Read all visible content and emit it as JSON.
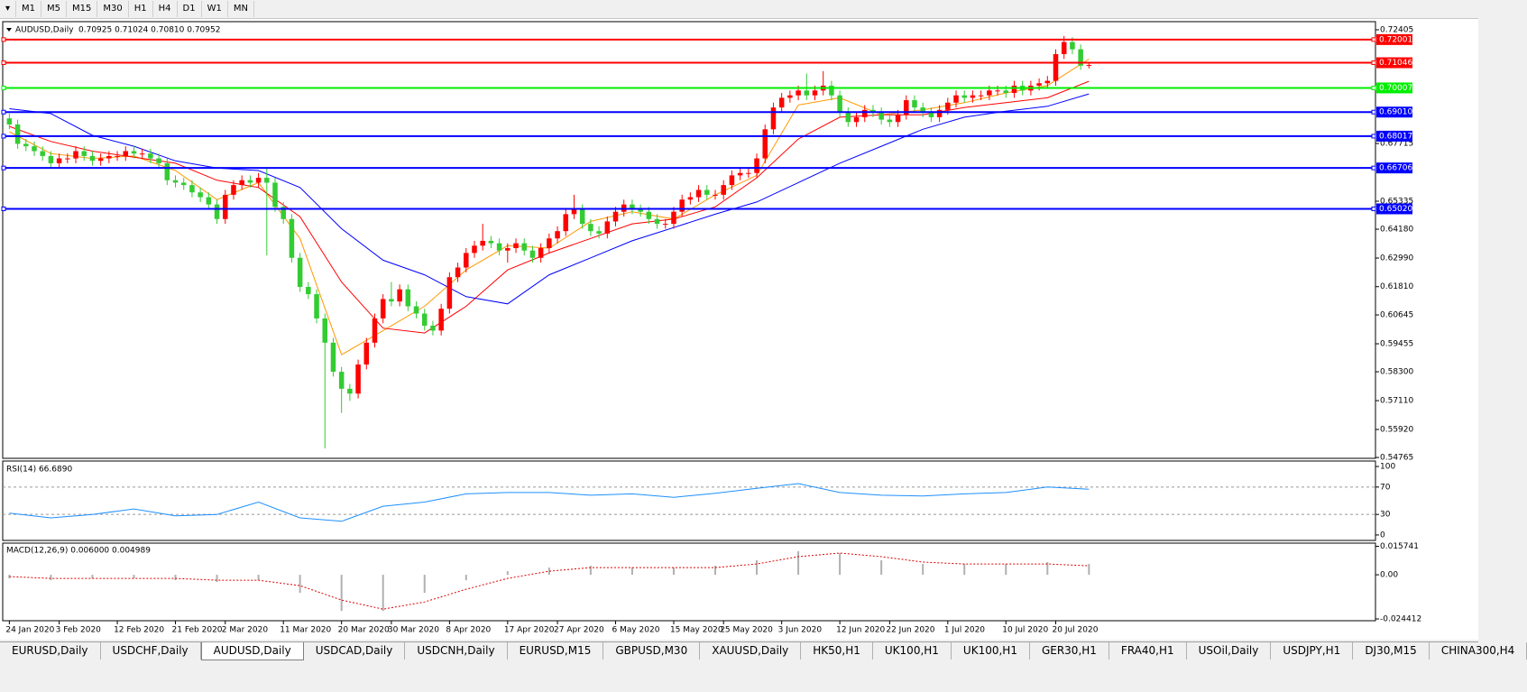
{
  "toolbar": {
    "timeframes": [
      "M1",
      "M5",
      "M15",
      "M30",
      "H1",
      "H4",
      "D1",
      "W1",
      "MN"
    ]
  },
  "chart_data": [
    {
      "type": "candlestick",
      "title": "AUDUSD,Daily",
      "subtitle": "0.70925 0.71024 0.70810 0.70952",
      "up_color": "#ff0000",
      "down_color": "#33cc33",
      "ylim": [
        0.5473,
        0.7274
      ],
      "yticks": [
        0.72405,
        0.67715,
        0.65335,
        {
          "value": 0.6418,
          "label": "0.64180"
        },
        {
          "value": 0.6299,
          "label": "0.62990"
        },
        {
          "value": 0.6181,
          "label": "0.61810"
        },
        0.60645,
        0.59455,
        {
          "value": 0.583,
          "label": "0.58300"
        },
        {
          "value": 0.5711,
          "label": "0.57110"
        },
        {
          "value": 0.5592,
          "label": "0.55920"
        },
        0.54765
      ],
      "xlim": [
        -0.8,
        164.5
      ],
      "xticks": [
        {
          "value": 0,
          "label": "24 Jan 2020"
        },
        {
          "value": 6,
          "label": "3 Feb 2020"
        },
        {
          "value": 13,
          "label": "12 Feb 2020"
        },
        {
          "value": 20,
          "label": "21 Feb 2020"
        },
        {
          "value": 26,
          "label": "2 Mar 2020"
        },
        {
          "value": 33,
          "label": "11 Mar 2020"
        },
        {
          "value": 40,
          "label": "20 Mar 2020"
        },
        {
          "value": 46,
          "label": "30 Mar 2020"
        },
        {
          "value": 53,
          "label": "8 Apr 2020"
        },
        {
          "value": 60,
          "label": "17 Apr 2020"
        },
        {
          "value": 66,
          "label": "27 Apr 2020"
        },
        {
          "value": 73,
          "label": "6 May 2020"
        },
        {
          "value": 80,
          "label": "15 May 2020"
        },
        {
          "value": 86,
          "label": "25 May 2020"
        },
        {
          "value": 93,
          "label": "3 Jun 2020"
        },
        {
          "value": 100,
          "label": "12 Jun 2020"
        },
        {
          "value": 106,
          "label": "22 Jun 2020"
        },
        {
          "value": 113,
          "label": "1 Jul 2020"
        },
        {
          "value": 120,
          "label": "10 Jul 2020"
        },
        {
          "value": 126,
          "label": "20 Jul 2020"
        }
      ],
      "open": [
        0.6875,
        0.685,
        0.677,
        0.676,
        0.674,
        0.672,
        0.669,
        0.671,
        0.671,
        0.674,
        0.672,
        0.67,
        0.671,
        0.672,
        0.672,
        0.674,
        0.673,
        0.673,
        0.671,
        0.669,
        0.662,
        0.661,
        0.66,
        0.657,
        0.655,
        0.652,
        0.646,
        0.656,
        0.66,
        0.662,
        0.661,
        0.663,
        0.661,
        0.651,
        0.646,
        0.63,
        0.618,
        0.615,
        0.605,
        0.595,
        0.583,
        0.576,
        0.574,
        0.586,
        0.595,
        0.605,
        0.613,
        0.612,
        0.617,
        0.61,
        0.607,
        0.602,
        0.6,
        0.609,
        0.622,
        0.626,
        0.632,
        0.635,
        0.637,
        0.636,
        0.633,
        0.634,
        0.636,
        0.633,
        0.63,
        0.634,
        0.638,
        0.641,
        0.648,
        0.65,
        0.644,
        0.641,
        0.64,
        0.645,
        0.649,
        0.652,
        0.65,
        0.649,
        0.646,
        0.644,
        0.644,
        0.649,
        0.654,
        0.655,
        0.658,
        0.656,
        0.656,
        0.66,
        0.664,
        0.665,
        0.665,
        0.671,
        0.683,
        0.692,
        0.696,
        0.697,
        0.699,
        0.697,
        0.699,
        0.701,
        0.697,
        0.69,
        0.686,
        0.688,
        0.691,
        0.69,
        0.687,
        0.686,
        0.689,
        0.695,
        0.692,
        0.69,
        0.688,
        0.691,
        0.694,
        0.697,
        0.696,
        0.697,
        0.697,
        0.699,
        0.699,
        0.698,
        0.701,
        0.699,
        0.701,
        0.702,
        0.703,
        0.714,
        0.719,
        0.716,
        0.70925
      ],
      "high": [
        0.6895,
        0.687,
        0.679,
        0.678,
        0.676,
        0.674,
        0.673,
        0.673,
        0.676,
        0.676,
        0.674,
        0.673,
        0.674,
        0.674,
        0.676,
        0.676,
        0.675,
        0.675,
        0.673,
        0.671,
        0.664,
        0.663,
        0.662,
        0.659,
        0.657,
        0.654,
        0.658,
        0.662,
        0.664,
        0.664,
        0.665,
        0.667,
        0.663,
        0.653,
        0.648,
        0.632,
        0.62,
        0.617,
        0.607,
        0.597,
        0.585,
        0.578,
        0.588,
        0.597,
        0.607,
        0.615,
        0.62,
        0.619,
        0.619,
        0.612,
        0.609,
        0.604,
        0.611,
        0.624,
        0.628,
        0.634,
        0.637,
        0.644,
        0.639,
        0.638,
        0.636,
        0.638,
        0.638,
        0.635,
        0.636,
        0.64,
        0.643,
        0.65,
        0.656,
        0.652,
        0.646,
        0.643,
        0.647,
        0.651,
        0.654,
        0.654,
        0.652,
        0.651,
        0.648,
        0.646,
        0.651,
        0.656,
        0.657,
        0.66,
        0.66,
        0.658,
        0.662,
        0.666,
        0.667,
        0.667,
        0.673,
        0.685,
        0.694,
        0.698,
        0.699,
        0.701,
        0.706,
        0.701,
        0.707,
        0.703,
        0.699,
        0.692,
        0.69,
        0.693,
        0.693,
        0.692,
        0.689,
        0.691,
        0.697,
        0.697,
        0.694,
        0.692,
        0.693,
        0.696,
        0.699,
        0.699,
        0.699,
        0.699,
        0.701,
        0.701,
        0.701,
        0.703,
        0.703,
        0.703,
        0.704,
        0.705,
        0.716,
        0.7215,
        0.721,
        0.718,
        0.71024
      ],
      "low": [
        0.683,
        0.675,
        0.674,
        0.672,
        0.67,
        0.667,
        0.667,
        0.669,
        0.669,
        0.67,
        0.668,
        0.668,
        0.669,
        0.67,
        0.67,
        0.671,
        0.671,
        0.669,
        0.667,
        0.66,
        0.659,
        0.658,
        0.655,
        0.653,
        0.65,
        0.644,
        0.644,
        0.654,
        0.658,
        0.659,
        0.659,
        0.631,
        0.649,
        0.644,
        0.628,
        0.616,
        0.613,
        0.603,
        0.5514,
        0.581,
        0.566,
        0.571,
        0.572,
        0.584,
        0.593,
        0.603,
        0.61,
        0.61,
        0.608,
        0.605,
        0.6,
        0.598,
        0.598,
        0.607,
        0.62,
        0.624,
        0.63,
        0.633,
        0.634,
        0.631,
        0.628,
        0.632,
        0.631,
        0.628,
        0.628,
        0.632,
        0.636,
        0.639,
        0.646,
        0.642,
        0.639,
        0.638,
        0.638,
        0.643,
        0.647,
        0.648,
        0.647,
        0.644,
        0.642,
        0.642,
        0.642,
        0.647,
        0.652,
        0.653,
        0.654,
        0.654,
        0.654,
        0.658,
        0.662,
        0.663,
        0.663,
        0.669,
        0.681,
        0.69,
        0.694,
        0.695,
        0.695,
        0.695,
        0.697,
        0.695,
        0.688,
        0.684,
        0.684,
        0.686,
        0.688,
        0.685,
        0.684,
        0.684,
        0.687,
        0.69,
        0.688,
        0.686,
        0.686,
        0.689,
        0.692,
        0.694,
        0.694,
        0.695,
        0.695,
        0.697,
        0.696,
        0.696,
        0.697,
        0.697,
        0.699,
        0.7,
        0.701,
        0.712,
        0.714,
        0.7075,
        0.7081
      ],
      "close": [
        0.685,
        0.677,
        0.676,
        0.674,
        0.672,
        0.669,
        0.671,
        0.671,
        0.674,
        0.672,
        0.67,
        0.671,
        0.672,
        0.672,
        0.674,
        0.673,
        0.673,
        0.671,
        0.669,
        0.662,
        0.661,
        0.66,
        0.657,
        0.655,
        0.652,
        0.646,
        0.656,
        0.66,
        0.662,
        0.661,
        0.663,
        0.661,
        0.651,
        0.646,
        0.63,
        0.618,
        0.615,
        0.605,
        0.595,
        0.583,
        0.576,
        0.574,
        0.586,
        0.595,
        0.605,
        0.613,
        0.612,
        0.617,
        0.61,
        0.607,
        0.602,
        0.6,
        0.609,
        0.622,
        0.626,
        0.632,
        0.635,
        0.637,
        0.636,
        0.633,
        0.634,
        0.636,
        0.633,
        0.63,
        0.634,
        0.638,
        0.641,
        0.648,
        0.65,
        0.644,
        0.641,
        0.64,
        0.645,
        0.649,
        0.652,
        0.65,
        0.649,
        0.646,
        0.644,
        0.644,
        0.649,
        0.654,
        0.655,
        0.658,
        0.656,
        0.656,
        0.66,
        0.664,
        0.665,
        0.665,
        0.671,
        0.683,
        0.692,
        0.696,
        0.697,
        0.699,
        0.697,
        0.699,
        0.701,
        0.697,
        0.69,
        0.686,
        0.688,
        0.691,
        0.69,
        0.687,
        0.686,
        0.689,
        0.695,
        0.692,
        0.69,
        0.688,
        0.691,
        0.694,
        0.697,
        0.696,
        0.697,
        0.697,
        0.699,
        0.699,
        0.698,
        0.701,
        0.699,
        0.701,
        0.702,
        0.703,
        0.714,
        0.719,
        0.716,
        0.70925,
        0.70952
      ],
      "series": [
        {
          "color": "#ff9900",
          "x": [
            0,
            5,
            10,
            15,
            20,
            25,
            30,
            35,
            40,
            45,
            50,
            55,
            60,
            65,
            70,
            75,
            80,
            85,
            90,
            95,
            100,
            105,
            110,
            115,
            120,
            125,
            130
          ],
          "values": [
            0.682,
            0.673,
            0.671,
            0.672,
            0.666,
            0.654,
            0.661,
            0.638,
            0.59,
            0.6,
            0.61,
            0.625,
            0.635,
            0.634,
            0.645,
            0.649,
            0.646,
            0.656,
            0.664,
            0.693,
            0.696,
            0.689,
            0.691,
            0.694,
            0.698,
            0.701,
            0.712
          ]
        },
        {
          "color": "#ff0000",
          "x": [
            0,
            5,
            10,
            15,
            20,
            25,
            30,
            35,
            40,
            45,
            50,
            55,
            60,
            65,
            70,
            75,
            80,
            85,
            90,
            95,
            100,
            105,
            110,
            115,
            120,
            125,
            130
          ],
          "values": [
            0.6842,
            0.678,
            0.674,
            0.6715,
            0.669,
            0.662,
            0.659,
            0.647,
            0.62,
            0.601,
            0.599,
            0.61,
            0.625,
            0.632,
            0.638,
            0.644,
            0.646,
            0.651,
            0.663,
            0.679,
            0.688,
            0.689,
            0.689,
            0.692,
            0.694,
            0.696,
            0.7028
          ]
        },
        {
          "color": "#0000ff",
          "x": [
            0,
            5,
            10,
            15,
            20,
            25,
            30,
            35,
            40,
            45,
            50,
            55,
            60,
            65,
            70,
            75,
            80,
            85,
            90,
            95,
            100,
            105,
            110,
            115,
            120,
            125,
            130
          ],
          "values": [
            0.6915,
            0.6895,
            0.6805,
            0.676,
            0.67,
            0.667,
            0.666,
            0.659,
            0.642,
            0.629,
            0.623,
            0.614,
            0.611,
            0.623,
            0.63,
            0.637,
            0.6425,
            0.648,
            0.653,
            0.661,
            0.669,
            0.676,
            0.683,
            0.688,
            0.6905,
            0.6925,
            0.6976
          ]
        }
      ],
      "levels": [
        {
          "value": 0.72001,
          "color": "#ff0000"
        },
        {
          "value": 0.71046,
          "color": "#ff0000"
        },
        {
          "value": 0.70007,
          "color": "#00ee00"
        },
        {
          "value": 0.6901,
          "label": "0.69010",
          "color": "#0000ff"
        },
        {
          "value": 0.68017,
          "color": "#0000ff"
        },
        {
          "value": 0.66706,
          "color": "#0000ff"
        },
        {
          "value": 0.6502,
          "label": "0.65020",
          "color": "#0000ff"
        }
      ]
    },
    {
      "type": "rsi",
      "title": "RSI(14) 66.6890",
      "ylim": [
        -8,
        108
      ],
      "yticks": [
        100,
        70,
        30,
        0
      ],
      "dashed_levels": [
        70,
        30
      ],
      "series": [
        {
          "color": "#1e90ff",
          "x": [
            0,
            5,
            10,
            15,
            20,
            25,
            30,
            35,
            40,
            45,
            50,
            55,
            60,
            65,
            70,
            75,
            80,
            85,
            90,
            95,
            100,
            105,
            110,
            115,
            120,
            125,
            130
          ],
          "values": [
            32,
            25,
            30,
            38,
            28,
            30,
            48,
            25,
            20,
            42,
            48,
            60,
            62,
            62,
            58,
            60,
            55,
            61,
            68,
            75,
            62,
            58,
            57,
            60,
            62,
            70,
            66.689
          ]
        }
      ]
    },
    {
      "type": "macd",
      "title": "MACD(12,26,9) 0.006000 0.004989",
      "ylim": [
        -0.0254,
        0.0175
      ],
      "yticks": [
        0.015741,
        {
          "value": 0,
          "label": "0.00"
        },
        -0.024412
      ],
      "x": [
        0,
        5,
        10,
        15,
        20,
        25,
        30,
        35,
        40,
        45,
        50,
        55,
        60,
        65,
        70,
        75,
        80,
        85,
        90,
        95,
        100,
        105,
        110,
        115,
        120,
        125,
        130
      ],
      "histogram": [
        -0.002,
        -0.003,
        -0.002,
        -0.002,
        -0.003,
        -0.004,
        -0.003,
        -0.01,
        -0.02,
        -0.02,
        -0.01,
        -0.003,
        0.002,
        0.004,
        0.005,
        0.004,
        0.004,
        0.005,
        0.008,
        0.013,
        0.012,
        0.008,
        0.006,
        0.006,
        0.006,
        0.007,
        0.006
      ],
      "histogram_color": "#b0b0b0",
      "signal": [
        -0.001,
        -0.002,
        -0.002,
        -0.002,
        -0.002,
        -0.003,
        -0.003,
        -0.006,
        -0.014,
        -0.019,
        -0.015,
        -0.008,
        -0.002,
        0.002,
        0.004,
        0.004,
        0.004,
        0.004,
        0.006,
        0.01,
        0.012,
        0.01,
        0.007,
        0.006,
        0.006,
        0.006,
        0.004989
      ],
      "signal_color": "#dd0000"
    }
  ],
  "tabs": [
    "EURUSD,Daily",
    "USDCHF,Daily",
    "AUDUSD,Daily",
    "USDCAD,Daily",
    "USDCNH,Daily",
    "EURUSD,M15",
    "GBPUSD,M30",
    "XAUUSD,Daily",
    "HK50,H1",
    "UK100,H1",
    "UK100,H1",
    "GER30,H1",
    "FRA40,H1",
    "USOil,Daily",
    "USDJPY,H1",
    "DJ30,M15",
    "CHINA300,H4"
  ],
  "active_tab": 2
}
